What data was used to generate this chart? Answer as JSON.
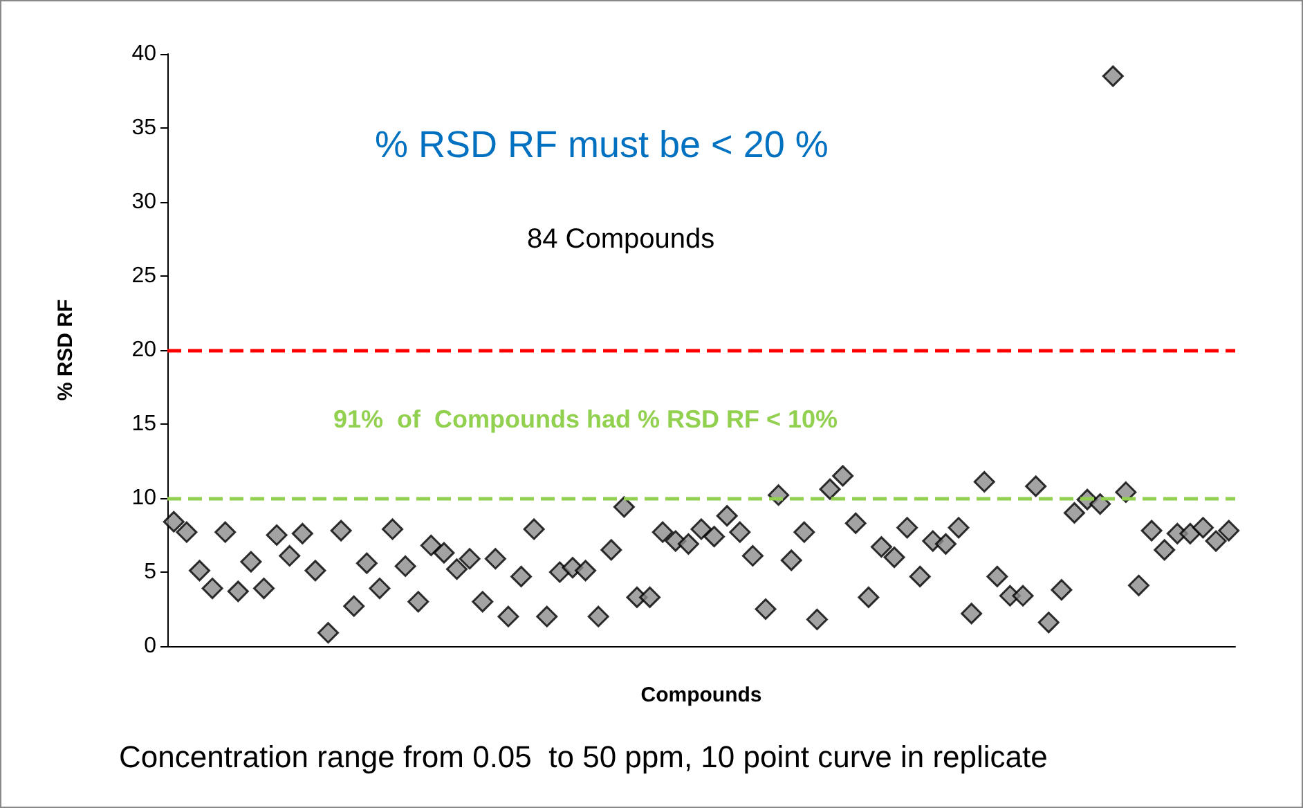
{
  "chart_data": {
    "type": "scatter",
    "title": "% RSD RF must be < 20 %",
    "xlabel": "Compounds",
    "ylabel": "% RSD RF",
    "categories": [
      null,
      null,
      null,
      null,
      null,
      null,
      null,
      null,
      null,
      null,
      null,
      null,
      null,
      null,
      null,
      null,
      null,
      null,
      null,
      null,
      null,
      null,
      null,
      null,
      null,
      null,
      null,
      null,
      null,
      null,
      null,
      null,
      null,
      null,
      null,
      null,
      null,
      null,
      null,
      null,
      null,
      null,
      null,
      null,
      null,
      null,
      null,
      null,
      null,
      null,
      null,
      null,
      null,
      null,
      null,
      null,
      null,
      null,
      null,
      null,
      null,
      null,
      null,
      null,
      null,
      null,
      null,
      null,
      null,
      null,
      null,
      null,
      null,
      null,
      null,
      null,
      null,
      null,
      null,
      null,
      null,
      null,
      null
    ],
    "series": [
      {
        "color": "#8c8c8c",
        "values": [
          8.4,
          7.7,
          5.1,
          3.9,
          7.7,
          3.7,
          5.7,
          3.9,
          7.5,
          6.1,
          7.6,
          5.1,
          0.9,
          7.8,
          2.7,
          5.6,
          3.9,
          7.9,
          5.4,
          3.0,
          6.8,
          6.3,
          5.2,
          5.9,
          3.0,
          5.9,
          2.0,
          4.7,
          7.9,
          2.0,
          5.0,
          5.3,
          5.1,
          2.0,
          6.5,
          9.4,
          3.3,
          3.3,
          7.7,
          7.1,
          6.9,
          7.9,
          7.4,
          8.8,
          7.7,
          6.1,
          2.5,
          10.2,
          5.8,
          7.7,
          1.8,
          10.6,
          11.5,
          8.3,
          3.3,
          6.7,
          6.0,
          8.0,
          4.7,
          7.1,
          6.9,
          8.0,
          2.2,
          11.1,
          4.7,
          3.4,
          3.4,
          10.8,
          1.6,
          3.8,
          9.0,
          9.9,
          9.6,
          38.5,
          10.4,
          4.1,
          7.8,
          6.5,
          7.6,
          7.6,
          8.0,
          7.1,
          7.8
        ]
      }
    ],
    "ylim": [
      0,
      40
    ],
    "yticks": [
      0,
      5,
      10,
      15,
      20,
      25,
      30,
      35,
      40
    ],
    "marker": "diamond",
    "grid": false,
    "ref_lines": [
      {
        "axis": "y",
        "value": 20,
        "color": "#ff0000",
        "line_style": "dashed"
      },
      {
        "axis": "y",
        "value": 10,
        "color": "#92d050",
        "line_style": "dashed",
        "label": "91%  of  Compounds had % RSD RF < 10%"
      }
    ],
    "annotations": [
      "84 Compounds",
      "Concentration range from 0.05  to 50 ppm, 10 point curve in replicate"
    ]
  }
}
